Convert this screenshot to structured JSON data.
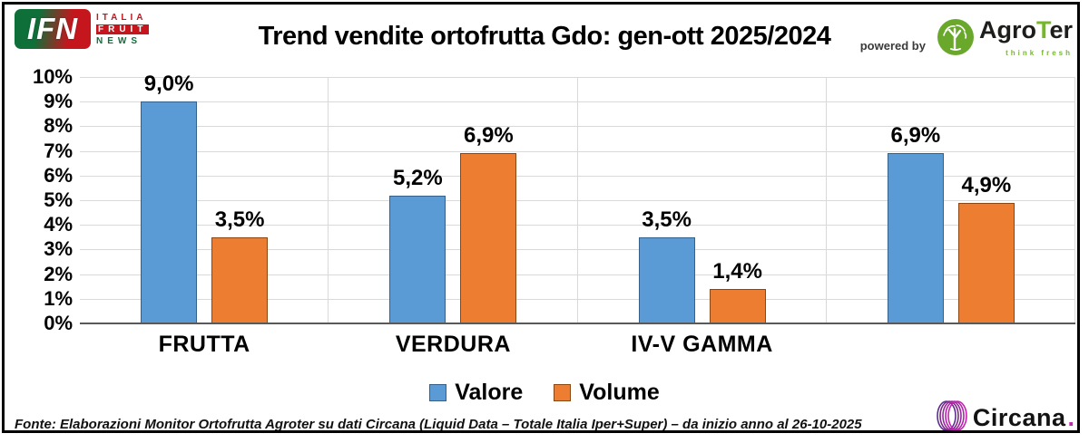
{
  "header": {
    "title": "Trend vendite ortofrutta Gdo: gen-ott 2025/2024",
    "powered_by": "powered by",
    "ifn_logo": {
      "abbr": "IFN",
      "word1": "ITALIA",
      "word2": "FRUIT",
      "word3": "NEWS"
    },
    "agroter": {
      "name_part1": "Agro",
      "name_t": "T",
      "name_part2": "er",
      "tagline": "think fresh",
      "green": "#76b82a"
    }
  },
  "chart_data": {
    "type": "bar",
    "title": "Trend vendite ortofrutta Gdo: gen-ott 2025/2024",
    "categories": [
      "FRUTTA",
      "VERDURA",
      "IV-V GAMMA",
      ""
    ],
    "series": [
      {
        "name": "Valore",
        "color": "#5B9BD5",
        "border_color": "#35608C",
        "values": [
          9.0,
          5.2,
          3.5,
          6.9
        ],
        "labels": [
          "9,0%",
          "5,2%",
          "3,5%",
          "6,9%"
        ]
      },
      {
        "name": "Volume",
        "color": "#ED7D31",
        "border_color": "#8C4612",
        "values": [
          3.5,
          6.9,
          1.4,
          4.9
        ],
        "labels": [
          "3,5%",
          "6,9%",
          "1,4%",
          "4,9%"
        ]
      }
    ],
    "ylim": [
      0,
      10
    ],
    "ytick_step": 1,
    "ytick_labels": [
      "0%",
      "1%",
      "2%",
      "3%",
      "4%",
      "5%",
      "6%",
      "7%",
      "8%",
      "9%",
      "10%"
    ],
    "grid": true,
    "grid_color": "#d9d9d9",
    "axis_color": "#595959",
    "legend_position": "bottom"
  },
  "footer": {
    "source": "Fonte: Elaborazioni Monitor Ortofrutta Agroter su dati Circana (Liquid Data – Totale Italia Iper+Super) – da inizio anno al 26-10-2025",
    "circana_name": "Circana",
    "circana_dot": "."
  }
}
